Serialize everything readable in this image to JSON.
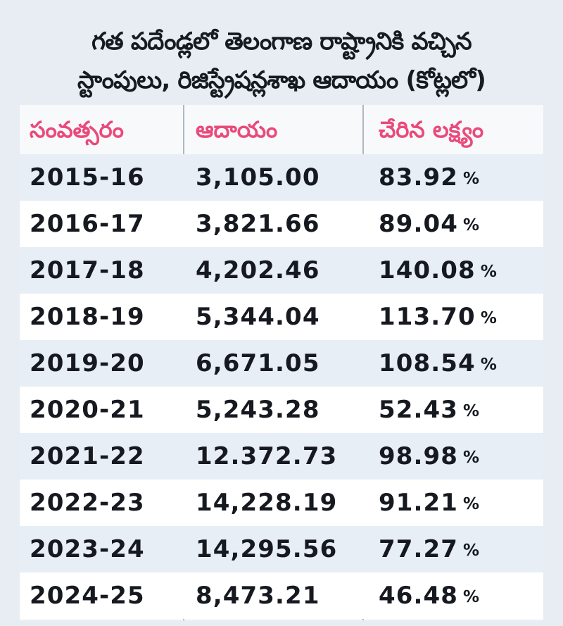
{
  "title": {
    "line1": "గత పదేండ్లలో తెలంగాణ రాష్ట్రానికి వచ్చిన",
    "line2": "స్టాంపులు, రిజిస్ట్రేషన్లశాఖ ఆదాయం (కోట్లలో)"
  },
  "colors": {
    "header_text": "#ea4a7a",
    "body_text": "#16191f",
    "row_alt_bg": "#e7eef6",
    "row_bg": "#ffffff",
    "card_bg": "#e7edf3"
  },
  "chart_data": {
    "type": "table",
    "title": "గత పదేండ్లలో తెలంగాణ రాష్ట్రానికి వచ్చిన స్టాంపులు, రిజిస్ట్రేషన్లశాఖ ఆదాయం (కోట్లలో)",
    "columns": [
      "సంవత్సరం",
      "ఆదాయం",
      "చేరిన లక్ష్యం"
    ],
    "rows": [
      {
        "year": "2015-16",
        "revenue": "3,105.00",
        "target_reached": "83.92",
        "unit": "%"
      },
      {
        "year": "2016-17",
        "revenue": "3,821.66",
        "target_reached": "89.04",
        "unit": "%"
      },
      {
        "year": "2017-18",
        "revenue": "4,202.46",
        "target_reached": "140.08",
        "unit": "%"
      },
      {
        "year": "2018-19",
        "revenue": "5,344.04",
        "target_reached": "113.70",
        "unit": "%"
      },
      {
        "year": "2019-20",
        "revenue": "6,671.05",
        "target_reached": "108.54",
        "unit": "%"
      },
      {
        "year": "2020-21",
        "revenue": "5,243.28",
        "target_reached": "52.43",
        "unit": "%"
      },
      {
        "year": "2021-22",
        "revenue": "12.372.73",
        "target_reached": "98.98",
        "unit": "%"
      },
      {
        "year": "2022-23",
        "revenue": "14,228.19",
        "target_reached": "91.21",
        "unit": "%"
      },
      {
        "year": "2023-24",
        "revenue": "14,295.56",
        "target_reached": "77.27",
        "unit": "%"
      },
      {
        "year": "2024-25",
        "revenue": "8,473.21",
        "target_reached": "46.48",
        "unit": "%"
      }
    ]
  }
}
